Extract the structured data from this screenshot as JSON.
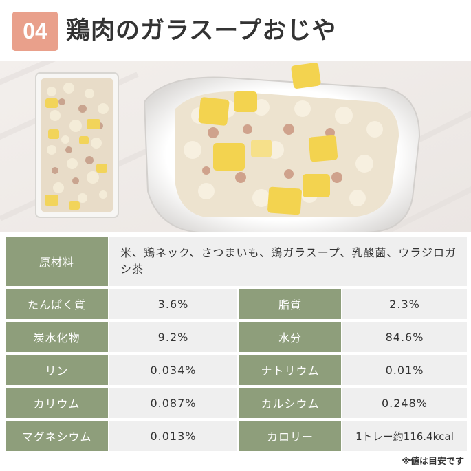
{
  "header": {
    "badge": "04",
    "title": "鶏肉のガラスープおじや"
  },
  "colors": {
    "badge": "#e9a08b",
    "label_bg": "#8e9e7b",
    "value_bg": "#efefef"
  },
  "nutrition": {
    "ingredients_label": "原材料",
    "ingredients_value": "米、鶏ネック、さつまいも、鶏ガラスープ、乳酸菌、ウラジロガシ茶",
    "rows": [
      {
        "l1": "たんぱく質",
        "v1": "3.6%",
        "l2": "脂質",
        "v2": "2.3%"
      },
      {
        "l1": "炭水化物",
        "v1": "9.2%",
        "l2": "水分",
        "v2": "84.6%"
      },
      {
        "l1": "リン",
        "v1": "0.034%",
        "l2": "ナトリウム",
        "v2": "0.01%"
      },
      {
        "l1": "カリウム",
        "v1": "0.087%",
        "l2": "カルシウム",
        "v2": "0.248%"
      },
      {
        "l1": "マグネシウム",
        "v1": "0.013%",
        "l2": "カロリー",
        "v2": "1トレー約116.4kcal"
      }
    ]
  },
  "note": "※値は目安です"
}
